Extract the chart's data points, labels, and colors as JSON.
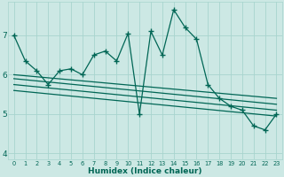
{
  "xlabel": "Humidex (Indice chaleur)",
  "x": [
    0,
    1,
    2,
    3,
    4,
    5,
    6,
    7,
    8,
    9,
    10,
    11,
    12,
    13,
    14,
    15,
    16,
    17,
    18,
    19,
    20,
    21,
    22,
    23
  ],
  "y_main": [
    7.0,
    6.35,
    6.1,
    5.75,
    6.1,
    6.15,
    6.0,
    6.5,
    6.6,
    6.35,
    7.05,
    5.0,
    7.1,
    6.5,
    7.65,
    7.2,
    6.9,
    5.75,
    5.4,
    5.2,
    5.1,
    4.7,
    4.6,
    5.0
  ],
  "y_trend1_start": 6.0,
  "y_trend1_end": 5.4,
  "y_trend2_start": 5.9,
  "y_trend2_end": 5.25,
  "y_trend3_start": 5.75,
  "y_trend3_end": 5.1,
  "y_trend4_start": 5.6,
  "y_trend4_end": 4.95,
  "bg_color": "#cce8e4",
  "grid_color": "#a8d4ce",
  "line_color": "#006655",
  "ylim": [
    3.85,
    7.85
  ],
  "xlim": [
    -0.5,
    23.5
  ],
  "yticks": [
    4,
    5,
    6,
    7
  ],
  "xticks": [
    0,
    1,
    2,
    3,
    4,
    5,
    6,
    7,
    8,
    9,
    10,
    11,
    12,
    13,
    14,
    15,
    16,
    17,
    18,
    19,
    20,
    21,
    22,
    23
  ],
  "marker": "+",
  "markersize": 4,
  "markeredgewidth": 1.0,
  "linewidth": 0.9,
  "trend_linewidth": 0.9
}
